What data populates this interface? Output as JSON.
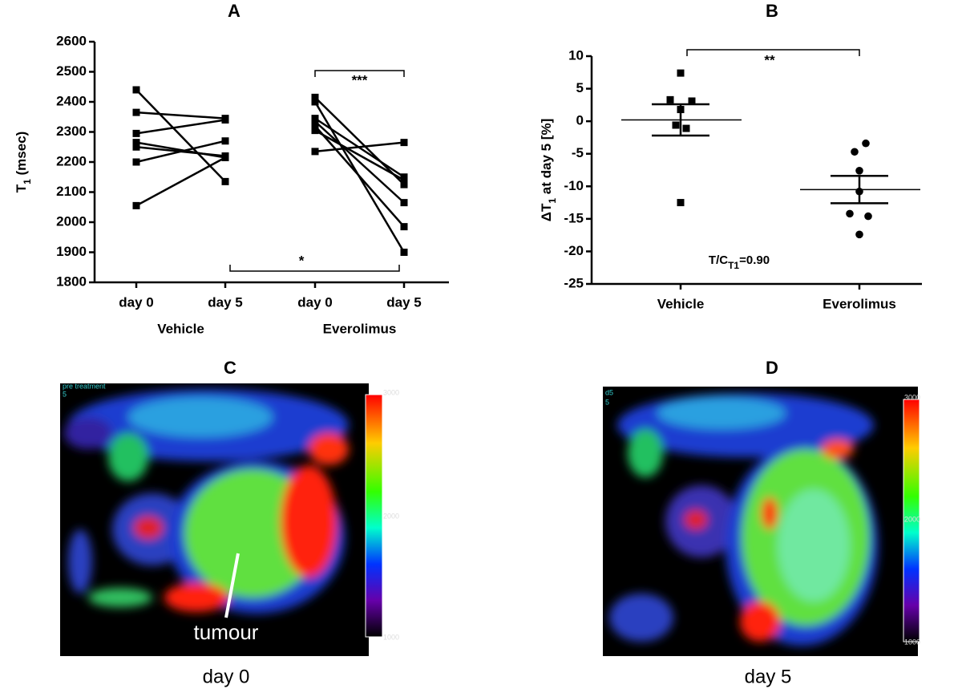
{
  "chart_data": [
    {
      "type": "line",
      "title": "A",
      "ylabel": [
        "T",
        "1",
        " (msec)"
      ],
      "categories": [
        "day 0",
        "day 5",
        "day 0",
        "day 5"
      ],
      "groups": [
        "Vehicle",
        "Everolimus"
      ],
      "color": "#000000",
      "series": [
        {
          "values": [
            2440,
            2135,
            null,
            null
          ]
        },
        {
          "values": [
            2365,
            2345,
            null,
            null
          ]
        },
        {
          "values": [
            2295,
            2340,
            null,
            null
          ]
        },
        {
          "values": [
            2265,
            2215,
            null,
            null
          ]
        },
        {
          "values": [
            2250,
            2220,
            null,
            null
          ]
        },
        {
          "values": [
            2200,
            2270,
            null,
            null
          ]
        },
        {
          "values": [
            2055,
            2215,
            null,
            null
          ]
        },
        {
          "values": [
            null,
            null,
            2415,
            2125
          ]
        },
        {
          "values": [
            null,
            null,
            2400,
            1900
          ]
        },
        {
          "values": [
            null,
            null,
            2345,
            2150
          ]
        },
        {
          "values": [
            null,
            null,
            2335,
            2065
          ]
        },
        {
          "values": [
            null,
            null,
            2320,
            1985
          ]
        },
        {
          "values": [
            null,
            null,
            2305,
            2140
          ]
        },
        {
          "values": [
            null,
            null,
            2235,
            2265
          ]
        }
      ],
      "ylim": [
        1800,
        2600
      ],
      "yticks": [
        1800,
        1900,
        2000,
        2100,
        2200,
        2300,
        2400,
        2500,
        2600
      ],
      "annotations": [
        "***",
        "*"
      ]
    },
    {
      "type": "scatter",
      "title": "B",
      "ylabel": [
        "ΔT",
        "1",
        " at day 5 [%]"
      ],
      "categories": [
        "Vehicle",
        "Everolimus"
      ],
      "color": "#000000",
      "series": [
        {
          "marker": "square",
          "values": [
            7.4,
            3.3,
            3.1,
            1.8,
            -0.6,
            -1.1,
            -12.5
          ]
        },
        {
          "marker": "circle",
          "values": [
            -3.4,
            -4.7,
            -7.6,
            -10.8,
            -14.2,
            -14.6,
            -17.4
          ]
        }
      ],
      "means": [
        0.2,
        -10.5
      ],
      "sem": [
        2.4,
        2.1
      ],
      "ylim": [
        -25,
        10
      ],
      "yticks": [
        -25,
        -20,
        -15,
        -10,
        -5,
        0,
        5,
        10
      ],
      "annotations": [
        "**"
      ],
      "note": [
        "T/C",
        "T1",
        "=0.90"
      ]
    }
  ],
  "images": [
    {
      "title": "C",
      "caption": "day 0",
      "overlay": [
        "pre treatment",
        "5"
      ],
      "colorbar": [
        "3000",
        "2000",
        "1000"
      ],
      "label": "tumour"
    },
    {
      "title": "D",
      "caption": "day 5",
      "overlay": [
        "d5",
        "5"
      ],
      "colorbar": [
        "3000",
        "2000",
        "1000"
      ]
    }
  ]
}
